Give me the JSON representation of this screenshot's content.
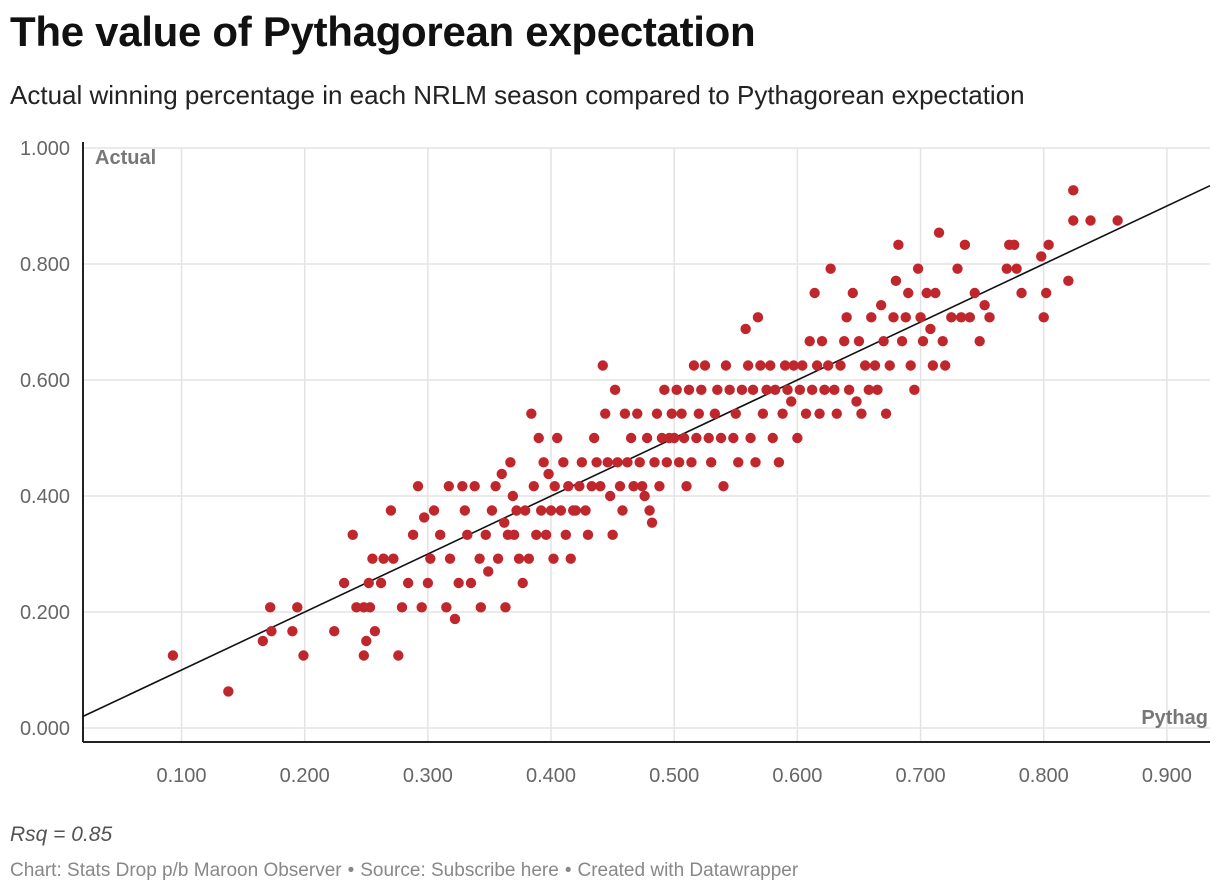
{
  "header": {
    "title": "The value of Pythagorean expectation",
    "subtitle": "Actual winning percentage in each NRLM season compared to Pythagorean expectation"
  },
  "note": "Rsq = 0.85",
  "footer": {
    "chart_credit": "Chart: Stats Drop p/b Maroon Observer",
    "source": "Source: Subscribe here",
    "created_with": "Created with Datawrapper"
  },
  "colors": {
    "point": "#c0272d",
    "grid": "#e3e3e3",
    "axis": "#222222",
    "trend": "#111111"
  },
  "chart_data": {
    "type": "scatter",
    "title": "The value of Pythagorean expectation",
    "xlabel": "Pythag",
    "ylabel": "Actual",
    "xlim": [
      0.02,
      0.935
    ],
    "ylim": [
      0,
      1.0
    ],
    "x_ticks": [
      0.1,
      0.2,
      0.3,
      0.4,
      0.5,
      0.6,
      0.7,
      0.8,
      0.9
    ],
    "x_tick_labels": [
      "0.100",
      "0.200",
      "0.300",
      "0.400",
      "0.500",
      "0.600",
      "0.700",
      "0.800",
      "0.900"
    ],
    "y_ticks": [
      0,
      0.2,
      0.4,
      0.6,
      0.8,
      1.0
    ],
    "y_tick_labels": [
      "0.000",
      "0.200",
      "0.400",
      "0.600",
      "0.800",
      "1.000"
    ],
    "grid": true,
    "trend_line": {
      "slope": 1.0,
      "intercept": 0.0,
      "label": "Rsq = 0.85"
    },
    "points": [
      [
        0.093,
        0.125
      ],
      [
        0.138,
        0.063
      ],
      [
        0.166,
        0.15
      ],
      [
        0.172,
        0.208
      ],
      [
        0.173,
        0.167
      ],
      [
        0.19,
        0.167
      ],
      [
        0.194,
        0.208
      ],
      [
        0.199,
        0.125
      ],
      [
        0.224,
        0.167
      ],
      [
        0.232,
        0.25
      ],
      [
        0.239,
        0.333
      ],
      [
        0.242,
        0.208
      ],
      [
        0.248,
        0.208
      ],
      [
        0.248,
        0.125
      ],
      [
        0.25,
        0.15
      ],
      [
        0.252,
        0.25
      ],
      [
        0.253,
        0.208
      ],
      [
        0.255,
        0.292
      ],
      [
        0.257,
        0.167
      ],
      [
        0.262,
        0.25
      ],
      [
        0.264,
        0.292
      ],
      [
        0.27,
        0.375
      ],
      [
        0.272,
        0.292
      ],
      [
        0.276,
        0.125
      ],
      [
        0.279,
        0.208
      ],
      [
        0.284,
        0.25
      ],
      [
        0.288,
        0.333
      ],
      [
        0.292,
        0.417
      ],
      [
        0.295,
        0.208
      ],
      [
        0.297,
        0.363
      ],
      [
        0.3,
        0.25
      ],
      [
        0.302,
        0.292
      ],
      [
        0.305,
        0.375
      ],
      [
        0.31,
        0.333
      ],
      [
        0.315,
        0.208
      ],
      [
        0.317,
        0.417
      ],
      [
        0.318,
        0.292
      ],
      [
        0.322,
        0.188
      ],
      [
        0.325,
        0.25
      ],
      [
        0.328,
        0.417
      ],
      [
        0.33,
        0.375
      ],
      [
        0.332,
        0.333
      ],
      [
        0.335,
        0.25
      ],
      [
        0.338,
        0.417
      ],
      [
        0.342,
        0.292
      ],
      [
        0.343,
        0.208
      ],
      [
        0.347,
        0.333
      ],
      [
        0.349,
        0.27
      ],
      [
        0.352,
        0.375
      ],
      [
        0.355,
        0.417
      ],
      [
        0.357,
        0.292
      ],
      [
        0.36,
        0.438
      ],
      [
        0.362,
        0.354
      ],
      [
        0.363,
        0.208
      ],
      [
        0.365,
        0.333
      ],
      [
        0.367,
        0.458
      ],
      [
        0.369,
        0.4
      ],
      [
        0.37,
        0.333
      ],
      [
        0.372,
        0.375
      ],
      [
        0.374,
        0.292
      ],
      [
        0.377,
        0.25
      ],
      [
        0.379,
        0.375
      ],
      [
        0.382,
        0.292
      ],
      [
        0.384,
        0.542
      ],
      [
        0.386,
        0.417
      ],
      [
        0.388,
        0.333
      ],
      [
        0.39,
        0.5
      ],
      [
        0.392,
        0.375
      ],
      [
        0.394,
        0.458
      ],
      [
        0.396,
        0.333
      ],
      [
        0.398,
        0.438
      ],
      [
        0.4,
        0.375
      ],
      [
        0.402,
        0.292
      ],
      [
        0.403,
        0.417
      ],
      [
        0.405,
        0.5
      ],
      [
        0.408,
        0.375
      ],
      [
        0.41,
        0.458
      ],
      [
        0.412,
        0.333
      ],
      [
        0.414,
        0.417
      ],
      [
        0.416,
        0.292
      ],
      [
        0.418,
        0.375
      ],
      [
        0.42,
        0.375
      ],
      [
        0.423,
        0.417
      ],
      [
        0.425,
        0.458
      ],
      [
        0.428,
        0.375
      ],
      [
        0.43,
        0.333
      ],
      [
        0.433,
        0.417
      ],
      [
        0.435,
        0.5
      ],
      [
        0.437,
        0.458
      ],
      [
        0.44,
        0.417
      ],
      [
        0.442,
        0.625
      ],
      [
        0.444,
        0.542
      ],
      [
        0.446,
        0.458
      ],
      [
        0.448,
        0.4
      ],
      [
        0.45,
        0.333
      ],
      [
        0.452,
        0.583
      ],
      [
        0.454,
        0.458
      ],
      [
        0.456,
        0.417
      ],
      [
        0.458,
        0.375
      ],
      [
        0.46,
        0.542
      ],
      [
        0.462,
        0.458
      ],
      [
        0.465,
        0.5
      ],
      [
        0.467,
        0.417
      ],
      [
        0.47,
        0.542
      ],
      [
        0.472,
        0.458
      ],
      [
        0.474,
        0.417
      ],
      [
        0.476,
        0.4
      ],
      [
        0.478,
        0.5
      ],
      [
        0.48,
        0.375
      ],
      [
        0.482,
        0.354
      ],
      [
        0.484,
        0.458
      ],
      [
        0.486,
        0.542
      ],
      [
        0.488,
        0.417
      ],
      [
        0.49,
        0.5
      ],
      [
        0.492,
        0.583
      ],
      [
        0.494,
        0.458
      ],
      [
        0.496,
        0.5
      ],
      [
        0.498,
        0.542
      ],
      [
        0.5,
        0.5
      ],
      [
        0.502,
        0.583
      ],
      [
        0.504,
        0.458
      ],
      [
        0.506,
        0.542
      ],
      [
        0.508,
        0.5
      ],
      [
        0.51,
        0.417
      ],
      [
        0.512,
        0.583
      ],
      [
        0.514,
        0.458
      ],
      [
        0.516,
        0.625
      ],
      [
        0.518,
        0.5
      ],
      [
        0.52,
        0.542
      ],
      [
        0.522,
        0.583
      ],
      [
        0.525,
        0.625
      ],
      [
        0.528,
        0.5
      ],
      [
        0.53,
        0.458
      ],
      [
        0.533,
        0.542
      ],
      [
        0.535,
        0.583
      ],
      [
        0.538,
        0.5
      ],
      [
        0.54,
        0.417
      ],
      [
        0.542,
        0.625
      ],
      [
        0.545,
        0.583
      ],
      [
        0.548,
        0.5
      ],
      [
        0.55,
        0.542
      ],
      [
        0.552,
        0.458
      ],
      [
        0.555,
        0.583
      ],
      [
        0.558,
        0.688
      ],
      [
        0.56,
        0.625
      ],
      [
        0.562,
        0.5
      ],
      [
        0.564,
        0.583
      ],
      [
        0.566,
        0.458
      ],
      [
        0.568,
        0.708
      ],
      [
        0.57,
        0.625
      ],
      [
        0.572,
        0.542
      ],
      [
        0.575,
        0.583
      ],
      [
        0.578,
        0.625
      ],
      [
        0.58,
        0.5
      ],
      [
        0.582,
        0.583
      ],
      [
        0.585,
        0.458
      ],
      [
        0.588,
        0.542
      ],
      [
        0.59,
        0.625
      ],
      [
        0.592,
        0.583
      ],
      [
        0.595,
        0.563
      ],
      [
        0.597,
        0.625
      ],
      [
        0.6,
        0.5
      ],
      [
        0.602,
        0.583
      ],
      [
        0.604,
        0.625
      ],
      [
        0.607,
        0.542
      ],
      [
        0.61,
        0.667
      ],
      [
        0.612,
        0.583
      ],
      [
        0.614,
        0.75
      ],
      [
        0.616,
        0.625
      ],
      [
        0.618,
        0.542
      ],
      [
        0.62,
        0.667
      ],
      [
        0.622,
        0.583
      ],
      [
        0.625,
        0.625
      ],
      [
        0.627,
        0.792
      ],
      [
        0.63,
        0.583
      ],
      [
        0.632,
        0.542
      ],
      [
        0.635,
        0.625
      ],
      [
        0.638,
        0.667
      ],
      [
        0.64,
        0.708
      ],
      [
        0.642,
        0.583
      ],
      [
        0.645,
        0.75
      ],
      [
        0.648,
        0.563
      ],
      [
        0.65,
        0.667
      ],
      [
        0.652,
        0.542
      ],
      [
        0.655,
        0.625
      ],
      [
        0.658,
        0.583
      ],
      [
        0.66,
        0.708
      ],
      [
        0.663,
        0.625
      ],
      [
        0.665,
        0.583
      ],
      [
        0.668,
        0.729
      ],
      [
        0.67,
        0.667
      ],
      [
        0.672,
        0.542
      ],
      [
        0.675,
        0.625
      ],
      [
        0.678,
        0.708
      ],
      [
        0.68,
        0.771
      ],
      [
        0.682,
        0.833
      ],
      [
        0.685,
        0.667
      ],
      [
        0.688,
        0.708
      ],
      [
        0.69,
        0.75
      ],
      [
        0.692,
        0.625
      ],
      [
        0.695,
        0.583
      ],
      [
        0.698,
        0.792
      ],
      [
        0.7,
        0.708
      ],
      [
        0.702,
        0.667
      ],
      [
        0.705,
        0.75
      ],
      [
        0.708,
        0.688
      ],
      [
        0.71,
        0.625
      ],
      [
        0.712,
        0.75
      ],
      [
        0.715,
        0.854
      ],
      [
        0.718,
        0.667
      ],
      [
        0.72,
        0.625
      ],
      [
        0.725,
        0.708
      ],
      [
        0.73,
        0.792
      ],
      [
        0.733,
        0.708
      ],
      [
        0.736,
        0.833
      ],
      [
        0.74,
        0.708
      ],
      [
        0.744,
        0.75
      ],
      [
        0.748,
        0.667
      ],
      [
        0.752,
        0.729
      ],
      [
        0.756,
        0.708
      ],
      [
        0.77,
        0.792
      ],
      [
        0.772,
        0.833
      ],
      [
        0.776,
        0.833
      ],
      [
        0.778,
        0.792
      ],
      [
        0.782,
        0.75
      ],
      [
        0.798,
        0.813
      ],
      [
        0.8,
        0.708
      ],
      [
        0.802,
        0.75
      ],
      [
        0.804,
        0.833
      ],
      [
        0.82,
        0.771
      ],
      [
        0.824,
        0.875
      ],
      [
        0.824,
        0.927
      ],
      [
        0.838,
        0.875
      ],
      [
        0.86,
        0.875
      ]
    ]
  }
}
